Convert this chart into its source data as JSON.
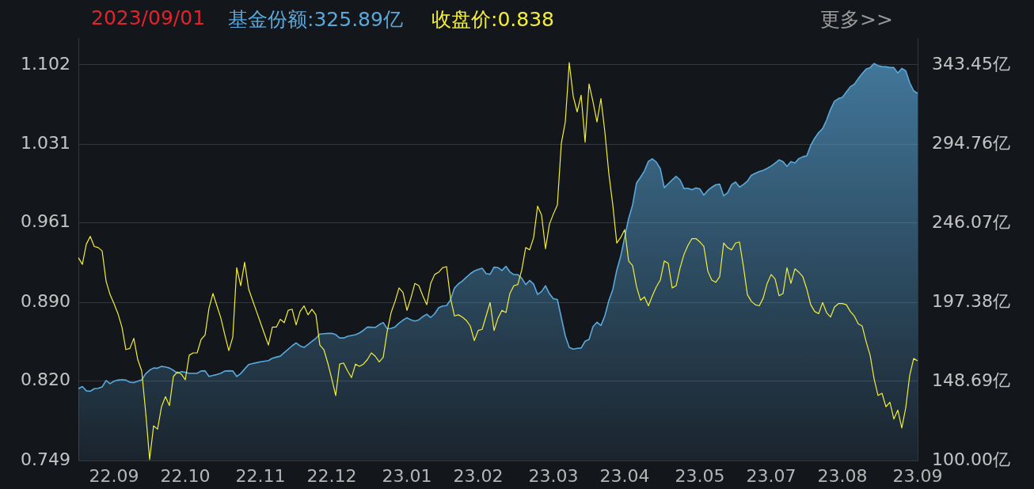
{
  "chart_data": {
    "type": "line",
    "annotations": [
      "2023/09/01",
      "基金份额:325.89亿",
      "收盘价:0.838",
      "更多>>"
    ],
    "grid": "y",
    "categories": [
      null,
      null,
      null,
      null,
      null,
      null,
      null,
      null,
      null,
      "22.09",
      null,
      null,
      null,
      null,
      null,
      null,
      null,
      null,
      null,
      null,
      null,
      null,
      null,
      null,
      null,
      null,
      null,
      "22.10",
      null,
      null,
      null,
      null,
      null,
      null,
      null,
      null,
      null,
      null,
      null,
      null,
      null,
      null,
      null,
      null,
      null,
      null,
      "22.11",
      null,
      null,
      null,
      null,
      null,
      null,
      null,
      null,
      null,
      null,
      null,
      null,
      null,
      null,
      null,
      null,
      null,
      "22.12",
      null,
      null,
      null,
      null,
      null,
      null,
      null,
      null,
      null,
      null,
      null,
      null,
      null,
      null,
      null,
      null,
      null,
      null,
      "23.01",
      null,
      null,
      null,
      null,
      null,
      null,
      null,
      null,
      null,
      null,
      null,
      null,
      null,
      null,
      null,
      null,
      null,
      "23.02",
      null,
      null,
      null,
      null,
      null,
      null,
      null,
      null,
      null,
      null,
      null,
      null,
      null,
      null,
      null,
      null,
      null,
      null,
      "23.03",
      null,
      null,
      null,
      null,
      null,
      null,
      null,
      null,
      null,
      null,
      null,
      null,
      null,
      null,
      null,
      null,
      null,
      "23.04",
      null,
      null,
      null,
      null,
      null,
      null,
      null,
      null,
      null,
      null,
      null,
      null,
      null,
      null,
      null,
      null,
      null,
      null,
      "23.05",
      null,
      null,
      null,
      null,
      null,
      null,
      null,
      null,
      null,
      null,
      null,
      null,
      null,
      null,
      null,
      null,
      null,
      "23.07",
      null,
      null,
      null,
      null,
      null,
      null,
      null,
      null,
      null,
      null,
      null,
      null,
      null,
      null,
      null,
      null,
      null,
      "23.08",
      null,
      null,
      null,
      null,
      null,
      null,
      null,
      null,
      null,
      null,
      null,
      null,
      null,
      null,
      null,
      null,
      null,
      null,
      "23.09"
    ],
    "ylim": [
      0.749,
      1.126
    ],
    "yticks": [
      0.749,
      {
        "value": 0.82,
        "label": "0.820"
      },
      {
        "value": 0.89,
        "label": "0.890"
      },
      0.961,
      1.031,
      1.102
    ],
    "y2lim": [
      100,
      360
    ],
    "y2ticks": [
      {
        "value": 100,
        "label": "100.00亿"
      },
      {
        "value": 148.69,
        "label": "148.69亿"
      },
      {
        "value": 197.38,
        "label": "197.38亿"
      },
      {
        "value": 246.07,
        "label": "246.07亿"
      },
      {
        "value": 294.76,
        "label": "294.76亿"
      },
      {
        "value": 343.45,
        "label": "343.45亿"
      }
    ],
    "series": [
      {
        "type": "area",
        "axis": "y2",
        "color": "#5aa9dc",
        "values": [
          144.2,
          145.5,
          142.9,
          142.6,
          144.2,
          144.4,
          145.3,
          149.2,
          147.3,
          148.8,
          149.5,
          149.8,
          149.5,
          148.2,
          147.9,
          148.8,
          149.6,
          153.4,
          155.6,
          156.9,
          156.8,
          157.9,
          157.6,
          156.9,
          155.5,
          153.7,
          154.7,
          154.3,
          153.7,
          153.7,
          153.7,
          155.1,
          155.2,
          151.7,
          152.3,
          152.9,
          153.7,
          155.1,
          155.2,
          155.1,
          151.7,
          153.5,
          156.3,
          159.0,
          159.6,
          160.2,
          160.7,
          161.1,
          161.5,
          162.9,
          163.6,
          164.2,
          166.4,
          168.5,
          170.6,
          172.4,
          170.5,
          169.6,
          171.4,
          173.3,
          175.2,
          177.8,
          178.0,
          178.2,
          178.3,
          177.5,
          175.4,
          175.4,
          176.4,
          176.9,
          177.4,
          178.5,
          180.1,
          182.1,
          182.0,
          181.9,
          183.6,
          184.9,
          181.1,
          181.3,
          182.2,
          184.5,
          186.4,
          187.8,
          186.6,
          185.8,
          186.6,
          188.5,
          190.0,
          188.0,
          190.3,
          194.0,
          195.1,
          195.3,
          198.8,
          206.1,
          208.7,
          210.5,
          212.8,
          214.9,
          216.6,
          217.6,
          218.3,
          215.0,
          214.6,
          219.0,
          218.7,
          216.9,
          219.5,
          216.1,
          214.4,
          214.4,
          212.2,
          208.3,
          210.8,
          208.5,
          202.2,
          204.0,
          207.5,
          202.6,
          199.6,
          199.1,
          187.9,
          176.7,
          169.6,
          168.5,
          169.0,
          169.2,
          173.4,
          174.5,
          182.4,
          185.1,
          183.1,
          189.1,
          198.4,
          205.2,
          217.0,
          225.7,
          237.3,
          248.9,
          257.3,
          270.8,
          274.3,
          278.3,
          284.1,
          285.6,
          283.6,
          279.6,
          267.9,
          270.3,
          272.7,
          274.9,
          272.6,
          267.3,
          267.5,
          266.6,
          267.7,
          267.1,
          263.3,
          266.2,
          268.1,
          269.7,
          270.0,
          262.9,
          264.8,
          269.7,
          271.4,
          268.3,
          269.9,
          271.9,
          275.5,
          276.7,
          277.8,
          278.6,
          279.8,
          281.2,
          283.0,
          285.0,
          283.9,
          281.0,
          283.9,
          283.1,
          285.8,
          286.9,
          287.5,
          293.9,
          298.3,
          301.8,
          304.2,
          309.5,
          316.0,
          321.1,
          322.7,
          323.5,
          326.8,
          330.0,
          331.5,
          335.0,
          338.1,
          340.9,
          341.8,
          344.3,
          343.0,
          342.4,
          342.3,
          341.8,
          341.8,
          338.5,
          341.3,
          339.8,
          332.5,
          327.5,
          325.9
        ]
      },
      {
        "color": "#f2ee3a",
        "values": [
          0.93,
          0.924,
          0.942,
          0.949,
          0.94,
          0.939,
          0.936,
          0.909,
          0.897,
          0.889,
          0.88,
          0.868,
          0.848,
          0.849,
          0.858,
          0.839,
          0.829,
          0.792,
          0.75,
          0.78,
          0.777,
          0.797,
          0.806,
          0.798,
          0.824,
          0.828,
          0.826,
          0.821,
          0.843,
          0.845,
          0.845,
          0.857,
          0.861,
          0.885,
          0.898,
          0.887,
          0.876,
          0.861,
          0.847,
          0.859,
          0.921,
          0.905,
          0.926,
          0.902,
          0.892,
          0.882,
          0.872,
          0.862,
          0.852,
          0.868,
          0.868,
          0.875,
          0.872,
          0.883,
          0.884,
          0.87,
          0.882,
          0.887,
          0.879,
          0.884,
          0.879,
          0.852,
          0.848,
          0.836,
          0.822,
          0.807,
          0.835,
          0.836,
          0.829,
          0.823,
          0.835,
          0.833,
          0.835,
          0.839,
          0.845,
          0.842,
          0.837,
          0.841,
          0.864,
          0.881,
          0.891,
          0.903,
          0.899,
          0.883,
          0.894,
          0.907,
          0.905,
          0.896,
          0.888,
          0.907,
          0.915,
          0.917,
          0.921,
          0.922,
          0.894,
          0.878,
          0.879,
          0.877,
          0.874,
          0.869,
          0.856,
          0.865,
          0.866,
          0.878,
          0.89,
          0.865,
          0.876,
          0.883,
          0.881,
          0.898,
          0.905,
          0.906,
          0.919,
          0.939,
          0.937,
          0.948,
          0.976,
          0.968,
          0.938,
          0.96,
          0.969,
          0.977,
          1.032,
          1.051,
          1.104,
          1.074,
          1.06,
          1.075,
          1.033,
          1.085,
          1.069,
          1.051,
          1.072,
          1.042,
          1.005,
          0.977,
          0.943,
          0.948,
          0.955,
          0.927,
          0.923,
          0.904,
          0.892,
          0.895,
          0.887,
          0.896,
          0.904,
          0.91,
          0.927,
          0.925,
          0.903,
          0.905,
          0.921,
          0.933,
          0.941,
          0.947,
          0.947,
          0.944,
          0.94,
          0.918,
          0.91,
          0.908,
          0.913,
          0.943,
          0.939,
          0.937,
          0.943,
          0.944,
          0.922,
          0.897,
          0.891,
          0.888,
          0.887,
          0.894,
          0.907,
          0.915,
          0.911,
          0.896,
          0.898,
          0.921,
          0.907,
          0.92,
          0.917,
          0.913,
          0.902,
          0.888,
          0.882,
          0.88,
          0.89,
          0.881,
          0.877,
          0.886,
          0.889,
          0.889,
          0.888,
          0.882,
          0.878,
          0.871,
          0.869,
          0.855,
          0.843,
          0.822,
          0.807,
          0.809,
          0.797,
          0.801,
          0.786,
          0.794,
          0.778,
          0.796,
          0.825,
          0.84,
          0.838
        ]
      }
    ]
  }
}
